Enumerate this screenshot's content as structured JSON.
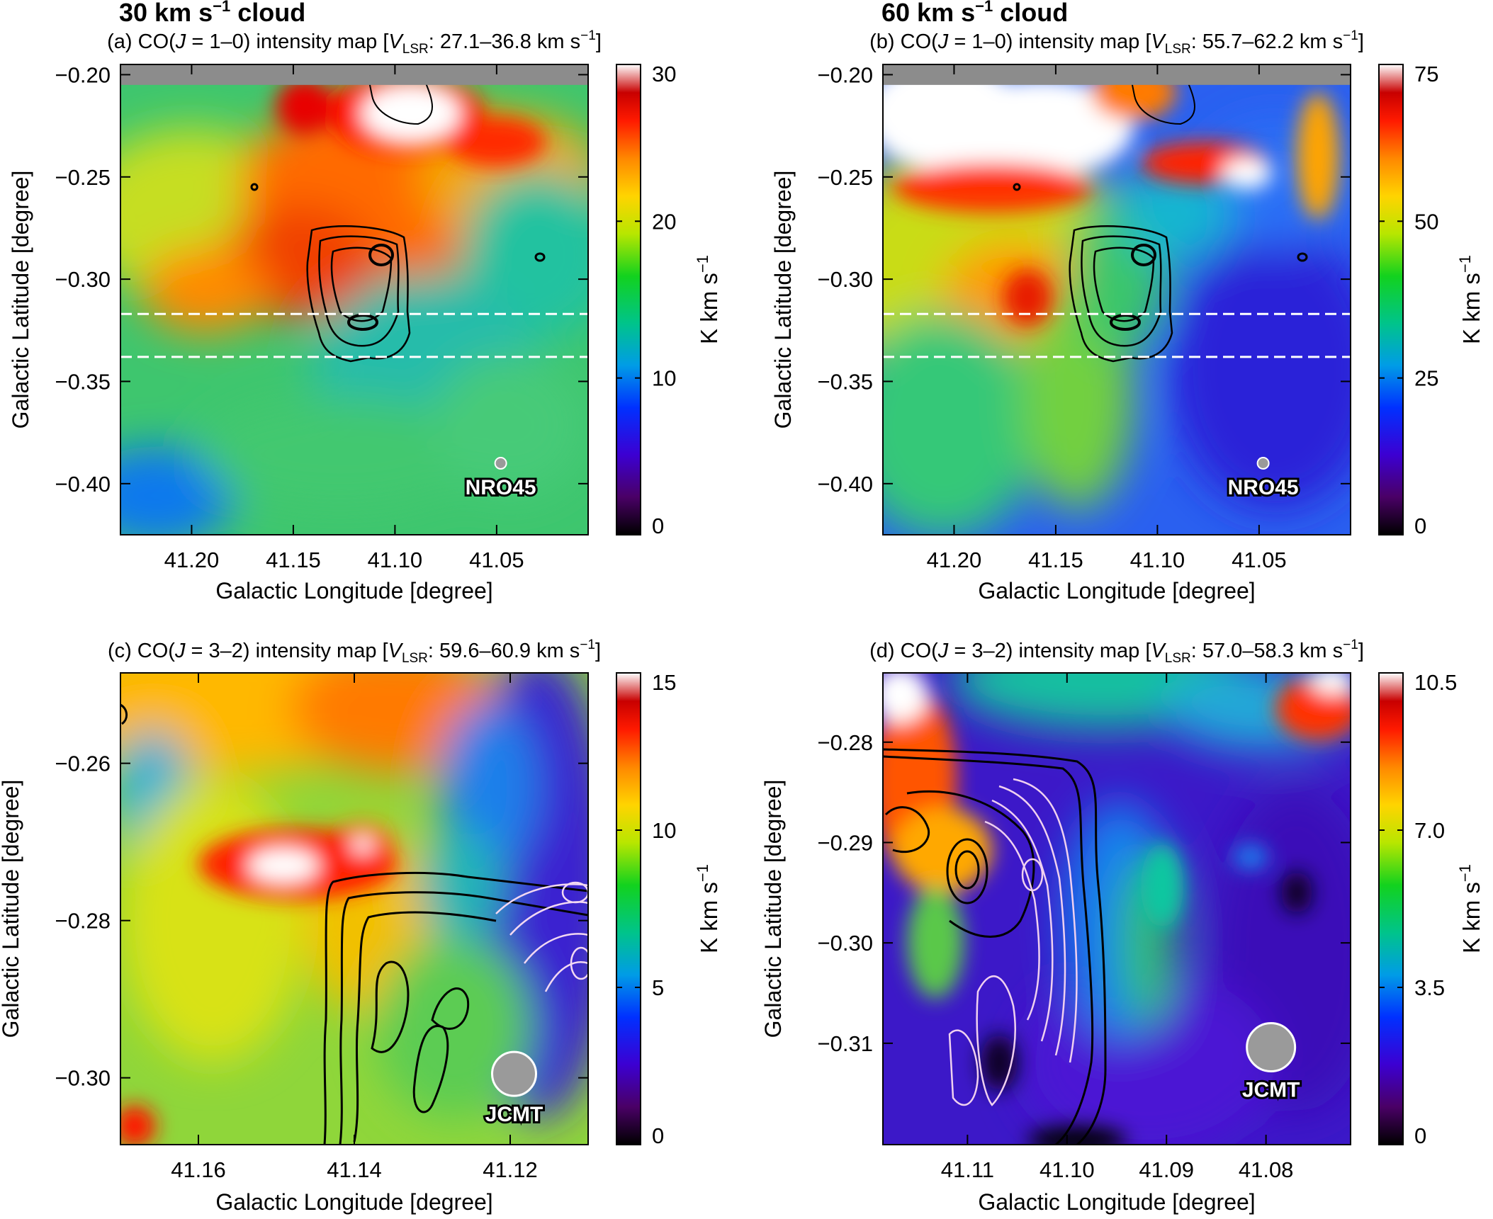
{
  "headers": [
    {
      "text": "30 km s",
      "sup": "−1",
      "tail": " cloud"
    },
    {
      "text": "60 km s",
      "sup": "−1",
      "tail": " cloud"
    }
  ],
  "colors": {
    "frame": "#000000",
    "gray_band": "#8c8c8c",
    "contour_dark": "#000000",
    "contour_light": "#f4d8f4",
    "dash": "#ffffff",
    "beam": "#9a9a9a"
  },
  "chart_data": [
    {
      "id": "a",
      "type": "heatmap",
      "title": {
        "prefix": "(a) CO(",
        "j": "J",
        "trans": " = 1–0) intensity map [",
        "v": "V",
        "sub": "LSR",
        "range": ": 27.1–36.8 km s",
        "sup": "−1",
        "close": "]"
      },
      "xlabel": "Galactic Longitude [degree]",
      "ylabel": "Galactic Latitude [degree]",
      "xlim": [
        41.235,
        41.005
      ],
      "ylim": [
        -0.425,
        -0.195
      ],
      "x_ticks": [
        "41.20",
        "41.15",
        "41.10",
        "41.05"
      ],
      "x_tick_values": [
        41.2,
        41.15,
        41.1,
        41.05
      ],
      "y_ticks": [
        "−0.20",
        "−0.25",
        "−0.30",
        "−0.35",
        "−0.40"
      ],
      "y_tick_values": [
        -0.2,
        -0.25,
        -0.3,
        -0.35,
        -0.4
      ],
      "colorbar": {
        "min": 0,
        "max": 30,
        "ticks": [
          "0",
          "10",
          "20",
          "30"
        ],
        "tick_values": [
          0,
          10,
          20,
          30
        ],
        "label": "K km s",
        "label_sup": "−1"
      },
      "telescope": "NRO45",
      "beam_center": [
        41.048,
        -0.39
      ],
      "dashed_lat": [
        -0.317,
        -0.338
      ],
      "gray_band_from": -0.205
    },
    {
      "id": "b",
      "type": "heatmap",
      "title": {
        "prefix": "(b) CO(",
        "j": "J",
        "trans": " = 1–0) intensity map [",
        "v": "V",
        "sub": "LSR",
        "range": ": 55.7–62.2 km s",
        "sup": "−1",
        "close": "]"
      },
      "xlabel": "Galactic Longitude [degree]",
      "ylabel": "Galactic Latitude [degree]",
      "xlim": [
        41.235,
        41.005
      ],
      "ylim": [
        -0.425,
        -0.195
      ],
      "x_ticks": [
        "41.20",
        "41.15",
        "41.10",
        "41.05"
      ],
      "x_tick_values": [
        41.2,
        41.15,
        41.1,
        41.05
      ],
      "y_ticks": [
        "−0.20",
        "−0.25",
        "−0.30",
        "−0.35",
        "−0.40"
      ],
      "y_tick_values": [
        -0.2,
        -0.25,
        -0.3,
        -0.35,
        -0.4
      ],
      "colorbar": {
        "min": 0,
        "max": 75,
        "ticks": [
          "0",
          "25",
          "50",
          "75"
        ],
        "tick_values": [
          0,
          25,
          50,
          75
        ],
        "label": "K km s",
        "label_sup": "−1"
      },
      "telescope": "NRO45",
      "beam_center": [
        41.048,
        -0.39
      ],
      "dashed_lat": [
        -0.317,
        -0.338
      ],
      "gray_band_from": -0.205
    },
    {
      "id": "c",
      "type": "heatmap",
      "title": {
        "prefix": "(c) CO(",
        "j": "J",
        "trans": " = 3–2) intensity map [",
        "v": "V",
        "sub": "LSR",
        "range": ": 59.6–60.9 km s",
        "sup": "−1",
        "close": "]"
      },
      "xlabel": "Galactic Longitude [degree]",
      "ylabel": "Galactic Latitude [degree]",
      "xlim": [
        41.17,
        41.11
      ],
      "ylim": [
        -0.3085,
        -0.2485
      ],
      "x_ticks": [
        "41.16",
        "41.14",
        "41.12"
      ],
      "x_tick_values": [
        41.16,
        41.14,
        41.12
      ],
      "y_ticks": [
        "−0.26",
        "−0.28",
        "−0.30"
      ],
      "y_tick_values": [
        -0.26,
        -0.28,
        -0.3
      ],
      "colorbar": {
        "min": 0,
        "max": 15,
        "ticks": [
          "0",
          "5",
          "10",
          "15"
        ],
        "tick_values": [
          0,
          5,
          10,
          15
        ],
        "label": "K km s",
        "label_sup": "−1"
      },
      "telescope": "JCMT",
      "beam_center": [
        41.1195,
        -0.2995
      ]
    },
    {
      "id": "d",
      "type": "heatmap",
      "title": {
        "prefix": "(d) CO(",
        "j": "J",
        "trans": " = 3–2) intensity map [",
        "v": "V",
        "sub": "LSR",
        "range": ": 57.0–58.3 km s",
        "sup": "−1",
        "close": "]"
      },
      "xlabel": "Galactic Longitude [degree]",
      "ylabel": "Galactic Latitude [degree]",
      "xlim": [
        41.1185,
        41.0715
      ],
      "ylim": [
        -0.3201,
        -0.2731
      ],
      "x_ticks": [
        "41.11",
        "41.10",
        "41.09",
        "41.08"
      ],
      "x_tick_values": [
        41.11,
        41.1,
        41.09,
        41.08
      ],
      "y_ticks": [
        "−0.28",
        "−0.29",
        "−0.30",
        "−0.31"
      ],
      "y_tick_values": [
        -0.28,
        -0.29,
        -0.3,
        -0.31
      ],
      "colorbar": {
        "min": 0,
        "max": 10.5,
        "ticks": [
          "0",
          "3.5",
          "7.0",
          "10.5"
        ],
        "tick_values": [
          0,
          3.5,
          7.0,
          10.5
        ],
        "label": "K km s",
        "label_sup": "−1"
      },
      "telescope": "JCMT",
      "beam_center": [
        41.0795,
        -0.3104
      ]
    }
  ]
}
